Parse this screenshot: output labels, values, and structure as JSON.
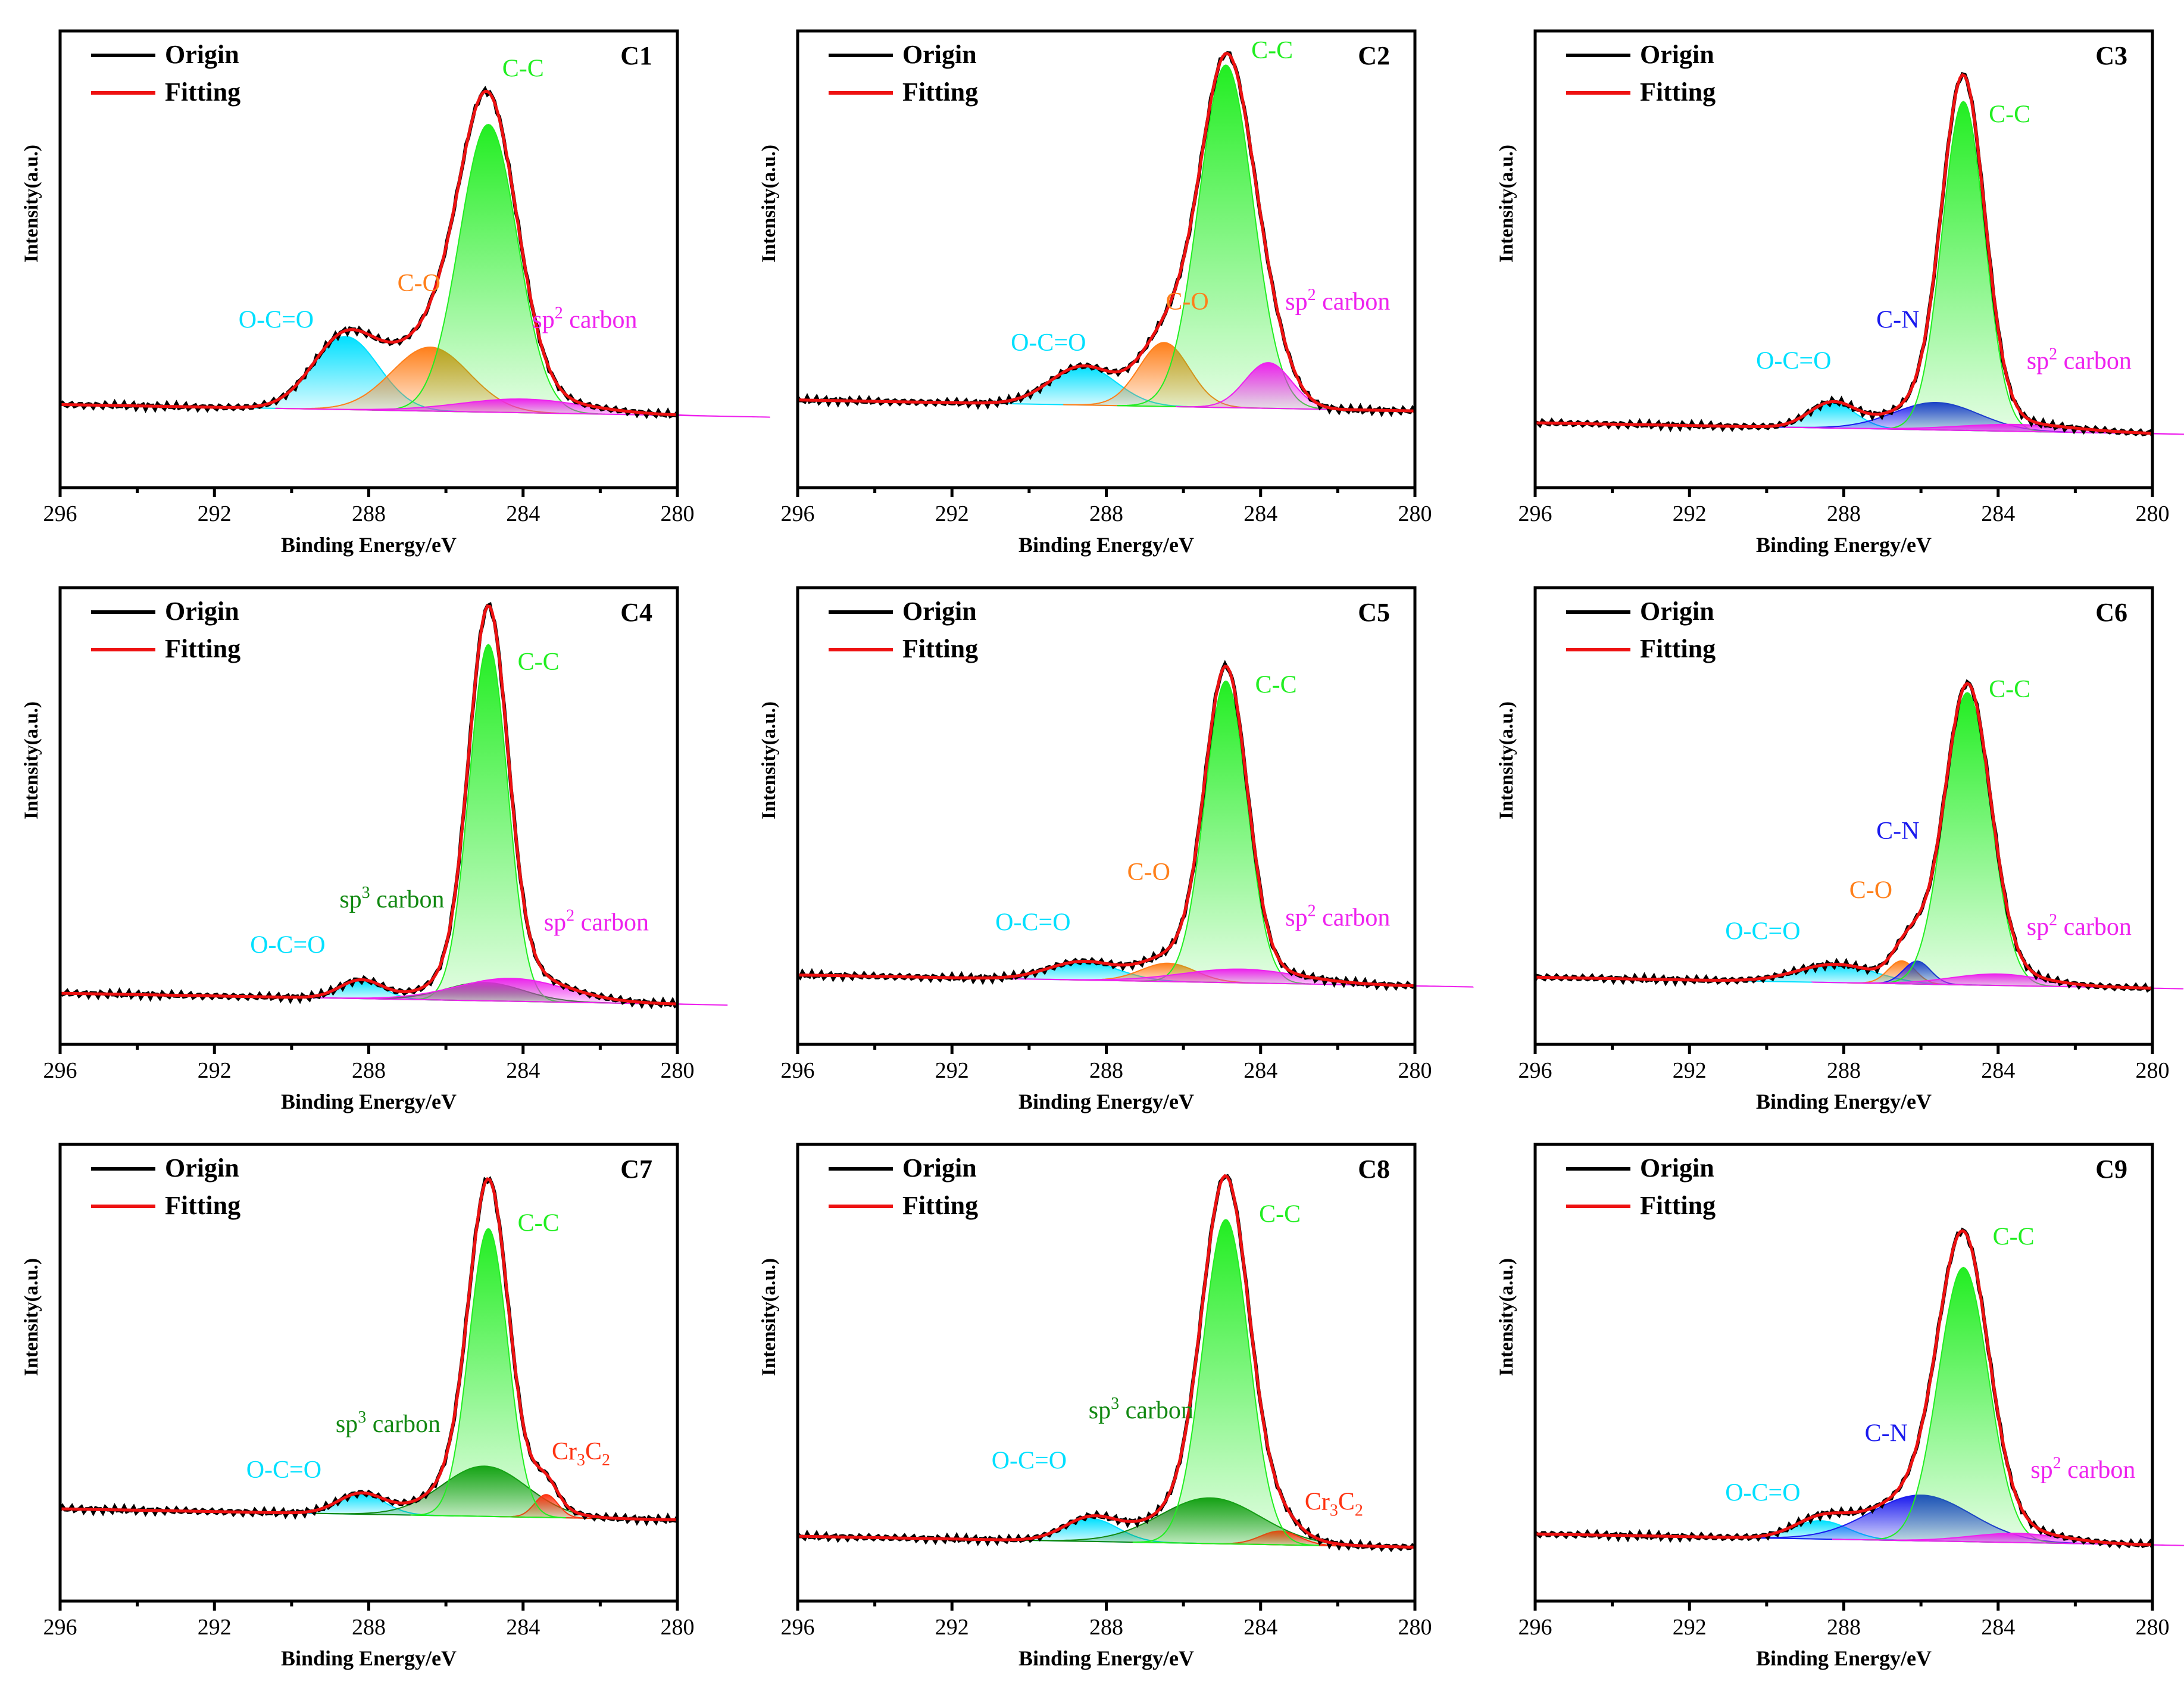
{
  "chart_data": [
    {
      "type": "area",
      "title": "C1",
      "xlabel": "Binding Energy/eV",
      "ylabel": "Intensity(a.u.)",
      "xlim": [
        296,
        280
      ],
      "ylim": [
        0,
        1
      ],
      "xticks": [
        296,
        292,
        288,
        284,
        280
      ],
      "legend": [
        "Origin",
        "Fitting"
      ],
      "baseline": 0.17,
      "components": [
        {
          "name": "O-C=O",
          "center": 288.6,
          "height": 0.16,
          "width": 0.85,
          "color": "#00e0ff"
        },
        {
          "name": "C-O",
          "center": 286.4,
          "height": 0.14,
          "width": 1.0,
          "color": "#ff7f1a"
        },
        {
          "name": "C-C",
          "center": 284.9,
          "height": 0.63,
          "width": 0.75,
          "color": "#22ee22"
        },
        {
          "name": "sp2 carbon",
          "center": 284.0,
          "height": 0.03,
          "width": 1.6,
          "color": "#ee22ee"
        }
      ],
      "annotations": [
        {
          "text": "O-C=O",
          "sup": "",
          "after": "",
          "color": "#00e0ff",
          "x": 290.4,
          "y": 0.35
        },
        {
          "text": "C-O",
          "sup": "",
          "after": "",
          "color": "#ff7f1a",
          "x": 286.7,
          "y": 0.43
        },
        {
          "text": "C-C",
          "sup": "",
          "after": "",
          "color": "#22ee22",
          "x": 284.0,
          "y": 0.9
        },
        {
          "text": "sp",
          "sup": "2",
          "after": " carbon",
          "color": "#ee22ee",
          "x": 282.4,
          "y": 0.35
        }
      ]
    },
    {
      "type": "area",
      "title": "C2",
      "xlabel": "Binding Energy/eV",
      "ylabel": "Intensity(a.u.)",
      "xlim": [
        296,
        280
      ],
      "ylim": [
        0,
        1
      ],
      "xticks": [
        296,
        292,
        288,
        284,
        280
      ],
      "legend": [
        "Origin",
        "Fitting"
      ],
      "baseline": 0.18,
      "components": [
        {
          "name": "O-C=O",
          "center": 288.6,
          "height": 0.085,
          "width": 0.85,
          "color": "#00e0ff"
        },
        {
          "name": "C-O",
          "center": 286.5,
          "height": 0.14,
          "width": 0.65,
          "color": "#ff7f1a"
        },
        {
          "name": "C-C",
          "center": 284.9,
          "height": 0.75,
          "width": 0.7,
          "color": "#22ee22"
        },
        {
          "name": "sp2 carbon",
          "center": 283.8,
          "height": 0.1,
          "width": 0.6,
          "color": "#ee22ee"
        }
      ],
      "annotations": [
        {
          "text": "O-C=O",
          "sup": "",
          "after": "",
          "color": "#00e0ff",
          "x": 289.5,
          "y": 0.3
        },
        {
          "text": "C-O",
          "sup": "",
          "after": "",
          "color": "#ff7f1a",
          "x": 285.9,
          "y": 0.39
        },
        {
          "text": "C-C",
          "sup": "",
          "after": "",
          "color": "#22ee22",
          "x": 283.7,
          "y": 0.94
        },
        {
          "text": "sp",
          "sup": "2",
          "after": " carbon",
          "color": "#ee22ee",
          "x": 282.0,
          "y": 0.39
        }
      ]
    },
    {
      "type": "area",
      "title": "C3",
      "xlabel": "Binding Energy/eV",
      "ylabel": "Intensity(a.u.)",
      "xlim": [
        296,
        280
      ],
      "ylim": [
        0,
        1
      ],
      "xticks": [
        296,
        292,
        288,
        284,
        280
      ],
      "legend": [
        "Origin",
        "Fitting"
      ],
      "baseline": 0.13,
      "components": [
        {
          "name": "O-C=O",
          "center": 288.3,
          "height": 0.055,
          "width": 0.6,
          "color": "#00e0ff"
        },
        {
          "name": "C-N",
          "center": 285.6,
          "height": 0.06,
          "width": 1.1,
          "color": "#1a1aee"
        },
        {
          "name": "C-C",
          "center": 284.9,
          "height": 0.72,
          "width": 0.55,
          "color": "#22ee22"
        },
        {
          "name": "sp2 carbon",
          "center": 283.5,
          "height": 0.015,
          "width": 1.5,
          "color": "#ee22ee"
        }
      ],
      "annotations": [
        {
          "text": "O-C=O",
          "sup": "",
          "after": "",
          "color": "#00e0ff",
          "x": 289.3,
          "y": 0.26
        },
        {
          "text": "C-N",
          "sup": "",
          "after": "",
          "color": "#1a1aee",
          "x": 286.6,
          "y": 0.35
        },
        {
          "text": "C-C",
          "sup": "",
          "after": "",
          "color": "#22ee22",
          "x": 283.7,
          "y": 0.8
        },
        {
          "text": "sp",
          "sup": "2",
          "after": " carbon",
          "color": "#ee22ee",
          "x": 281.9,
          "y": 0.26
        }
      ]
    },
    {
      "type": "area",
      "title": "C4",
      "xlabel": "Binding Energy/eV",
      "ylabel": "Intensity(a.u.)",
      "xlim": [
        296,
        280
      ],
      "ylim": [
        0,
        1
      ],
      "xticks": [
        296,
        292,
        288,
        284,
        280
      ],
      "legend": [
        "Origin",
        "Fitting"
      ],
      "baseline": 0.1,
      "components": [
        {
          "name": "O-C=O",
          "center": 288.2,
          "height": 0.04,
          "width": 0.55,
          "color": "#00e0ff"
        },
        {
          "name": "sp3 carbon",
          "center": 285.0,
          "height": 0.04,
          "width": 1.0,
          "color": "#118811"
        },
        {
          "name": "C-C",
          "center": 284.9,
          "height": 0.78,
          "width": 0.5,
          "color": "#22ee22"
        },
        {
          "name": "sp2 carbon",
          "center": 284.3,
          "height": 0.05,
          "width": 1.4,
          "color": "#ee22ee"
        }
      ],
      "annotations": [
        {
          "text": "O-C=O",
          "sup": "",
          "after": "",
          "color": "#00e0ff",
          "x": 290.1,
          "y": 0.2
        },
        {
          "text": "sp",
          "sup": "3",
          "after": " carbon",
          "color": "#118811",
          "x": 287.4,
          "y": 0.3
        },
        {
          "text": "C-C",
          "sup": "",
          "after": "",
          "color": "#22ee22",
          "x": 283.6,
          "y": 0.82
        },
        {
          "text": "sp",
          "sup": "2",
          "after": " carbon",
          "color": "#ee22ee",
          "x": 282.1,
          "y": 0.25
        }
      ]
    },
    {
      "type": "area",
      "title": "C5",
      "xlabel": "Binding Energy/eV",
      "ylabel": "Intensity(a.u.)",
      "xlim": [
        296,
        280
      ],
      "ylim": [
        0,
        1
      ],
      "xticks": [
        296,
        292,
        288,
        284,
        280
      ],
      "legend": [
        "Origin",
        "Fitting"
      ],
      "baseline": 0.14,
      "components": [
        {
          "name": "O-C=O",
          "center": 288.6,
          "height": 0.04,
          "width": 0.9,
          "color": "#00e0ff"
        },
        {
          "name": "C-O",
          "center": 286.4,
          "height": 0.04,
          "width": 0.7,
          "color": "#ff7f1a"
        },
        {
          "name": "C-C",
          "center": 284.9,
          "height": 0.66,
          "width": 0.55,
          "color": "#22ee22"
        },
        {
          "name": "sp2 carbon",
          "center": 284.5,
          "height": 0.03,
          "width": 1.5,
          "color": "#ee22ee"
        }
      ],
      "annotations": [
        {
          "text": "O-C=O",
          "sup": "",
          "after": "",
          "color": "#00e0ff",
          "x": 289.9,
          "y": 0.25
        },
        {
          "text": "C-O",
          "sup": "",
          "after": "",
          "color": "#ff7f1a",
          "x": 286.9,
          "y": 0.36
        },
        {
          "text": "C-C",
          "sup": "",
          "after": "",
          "color": "#22ee22",
          "x": 283.6,
          "y": 0.77
        },
        {
          "text": "sp",
          "sup": "2",
          "after": " carbon",
          "color": "#ee22ee",
          "x": 282.0,
          "y": 0.26
        }
      ]
    },
    {
      "type": "area",
      "title": "C6",
      "xlabel": "Binding Energy/eV",
      "ylabel": "Intensity(a.u.)",
      "xlim": [
        296,
        280
      ],
      "ylim": [
        0,
        1
      ],
      "xticks": [
        296,
        292,
        288,
        284,
        280
      ],
      "legend": [
        "Origin",
        "Fitting"
      ],
      "baseline": 0.135,
      "components": [
        {
          "name": "O-C=O",
          "center": 288.2,
          "height": 0.04,
          "width": 1.0,
          "color": "#00e0ff"
        },
        {
          "name": "C-O",
          "center": 286.5,
          "height": 0.05,
          "width": 0.35,
          "color": "#ff7f1a"
        },
        {
          "name": "C-N",
          "center": 286.1,
          "height": 0.05,
          "width": 0.35,
          "color": "#1a1aee"
        },
        {
          "name": "C-C",
          "center": 284.8,
          "height": 0.64,
          "width": 0.6,
          "color": "#22ee22"
        },
        {
          "name": "sp2 carbon",
          "center": 284.0,
          "height": 0.025,
          "width": 1.2,
          "color": "#ee22ee"
        }
      ],
      "annotations": [
        {
          "text": "O-C=O",
          "sup": "",
          "after": "",
          "color": "#00e0ff",
          "x": 290.1,
          "y": 0.23
        },
        {
          "text": "C-O",
          "sup": "",
          "after": "",
          "color": "#ff7f1a",
          "x": 287.3,
          "y": 0.32
        },
        {
          "text": "C-N",
          "sup": "",
          "after": "",
          "color": "#1a1aee",
          "x": 286.6,
          "y": 0.45
        },
        {
          "text": "C-C",
          "sup": "",
          "after": "",
          "color": "#22ee22",
          "x": 283.7,
          "y": 0.76
        },
        {
          "text": "sp",
          "sup": "2",
          "after": " carbon",
          "color": "#ee22ee",
          "x": 281.9,
          "y": 0.24
        }
      ]
    },
    {
      "type": "area",
      "title": "C7",
      "xlabel": "Binding Energy/eV",
      "ylabel": "Intensity(a.u.)",
      "xlim": [
        296,
        280
      ],
      "ylim": [
        0,
        1
      ],
      "xticks": [
        296,
        292,
        288,
        284,
        280
      ],
      "legend": [
        "Origin",
        "Fitting"
      ],
      "baseline": 0.19,
      "components": [
        {
          "name": "O-C=O",
          "center": 288.2,
          "height": 0.045,
          "width": 0.6,
          "color": "#00e0ff"
        },
        {
          "name": "sp3 carbon",
          "center": 285.0,
          "height": 0.11,
          "width": 1.1,
          "color": "#118811"
        },
        {
          "name": "Cr3C2",
          "center": 283.4,
          "height": 0.05,
          "width": 0.3,
          "color": "#ff3311"
        },
        {
          "name": "C-C",
          "center": 284.9,
          "height": 0.63,
          "width": 0.5,
          "color": "#22ee22"
        }
      ],
      "annotations": [
        {
          "text": "O-C=O",
          "sup": "",
          "after": "",
          "color": "#00e0ff",
          "x": 290.2,
          "y": 0.27
        },
        {
          "text": "sp",
          "sup": "3",
          "after": " carbon",
          "color": "#118811",
          "x": 287.5,
          "y": 0.37
        },
        {
          "text": "C-C",
          "sup": "",
          "after": "",
          "color": "#22ee22",
          "x": 283.6,
          "y": 0.81
        },
        {
          "text": "Cr",
          "sub1": "3",
          "mid": "C",
          "sub2": "2",
          "color": "#ff3311",
          "x": 282.5,
          "y": 0.31
        }
      ]
    },
    {
      "type": "area",
      "title": "C8",
      "xlabel": "Binding Energy/eV",
      "ylabel": "Intensity(a.u.)",
      "xlim": [
        296,
        280
      ],
      "ylim": [
        0,
        1
      ],
      "xticks": [
        296,
        292,
        288,
        284,
        280
      ],
      "legend": [
        "Origin",
        "Fitting"
      ],
      "baseline": 0.13,
      "components": [
        {
          "name": "O-C=O",
          "center": 288.4,
          "height": 0.05,
          "width": 0.7,
          "color": "#00e0ff"
        },
        {
          "name": "sp3 carbon",
          "center": 285.3,
          "height": 0.1,
          "width": 1.3,
          "color": "#118811"
        },
        {
          "name": "Cr3C2",
          "center": 283.5,
          "height": 0.03,
          "width": 0.5,
          "color": "#ff3311"
        },
        {
          "name": "C-C",
          "center": 284.9,
          "height": 0.71,
          "width": 0.6,
          "color": "#22ee22"
        }
      ],
      "annotations": [
        {
          "text": "O-C=O",
          "sup": "",
          "after": "",
          "color": "#00e0ff",
          "x": 290.0,
          "y": 0.29
        },
        {
          "text": "sp",
          "sup": "3",
          "after": " carbon",
          "color": "#118811",
          "x": 287.1,
          "y": 0.4
        },
        {
          "text": "C-C",
          "sup": "",
          "after": "",
          "color": "#22ee22",
          "x": 283.5,
          "y": 0.83
        },
        {
          "text": "Cr",
          "sub1": "3",
          "mid": "C",
          "sub2": "2",
          "color": "#ff3311",
          "x": 282.1,
          "y": 0.2
        }
      ]
    },
    {
      "type": "area",
      "title": "C9",
      "xlabel": "Binding Energy/eV",
      "ylabel": "Intensity(a.u.)",
      "xlim": [
        296,
        280
      ],
      "ylim": [
        0,
        1
      ],
      "xticks": [
        296,
        292,
        288,
        284,
        280
      ],
      "legend": [
        "Origin",
        "Fitting"
      ],
      "baseline": 0.135,
      "components": [
        {
          "name": "O-C=O",
          "center": 288.6,
          "height": 0.04,
          "width": 0.7,
          "color": "#00e0ff"
        },
        {
          "name": "C-N",
          "center": 286.0,
          "height": 0.1,
          "width": 1.3,
          "color": "#1a1aee"
        },
        {
          "name": "C-C",
          "center": 284.9,
          "height": 0.6,
          "width": 0.65,
          "color": "#22ee22"
        },
        {
          "name": "sp2 carbon",
          "center": 283.5,
          "height": 0.02,
          "width": 1.2,
          "color": "#ee22ee"
        }
      ],
      "annotations": [
        {
          "text": "O-C=O",
          "sup": "",
          "after": "",
          "color": "#00e0ff",
          "x": 290.1,
          "y": 0.22
        },
        {
          "text": "C-N",
          "sup": "",
          "after": "",
          "color": "#1a1aee",
          "x": 286.9,
          "y": 0.35
        },
        {
          "text": "C-C",
          "sup": "",
          "after": "",
          "color": "#22ee22",
          "x": 283.6,
          "y": 0.78
        },
        {
          "text": "sp",
          "sup": "2",
          "after": " carbon",
          "color": "#ee22ee",
          "x": 281.8,
          "y": 0.27
        }
      ]
    }
  ]
}
